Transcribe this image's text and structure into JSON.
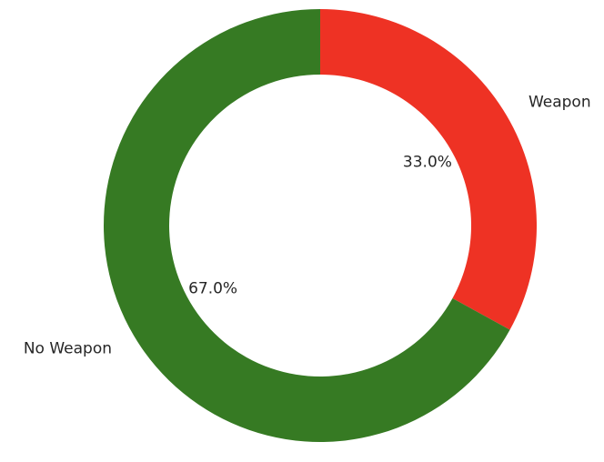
{
  "chart_data": {
    "type": "pie",
    "variant": "donut",
    "title": "",
    "categories": [
      "Weapon",
      "No Weapon"
    ],
    "values": [
      33.0,
      67.0
    ],
    "value_labels": [
      "33.0%",
      "67.0%"
    ],
    "colors": [
      "#ee3224",
      "#367a23"
    ],
    "start_angle_deg": 90,
    "direction": "clockwise",
    "legend": "none"
  }
}
